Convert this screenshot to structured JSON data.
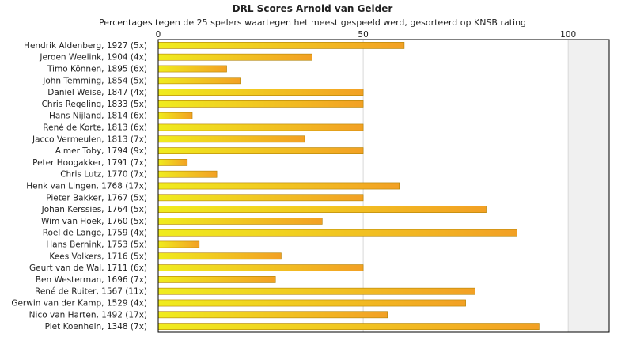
{
  "title": "DRL Scores Arnold van Gelder",
  "subtitle": "Percentages tegen de 25 spelers waartegen het meest gespeeld werd, gesorteerd op KNSB rating",
  "chart_data": {
    "type": "bar",
    "orientation": "horizontal",
    "title": "DRL Scores Arnold van Gelder",
    "subtitle": "Percentages tegen de 25 spelers waartegen het meest gespeeld werd, gesorteerd op KNSB rating",
    "xlim": [
      0,
      110
    ],
    "x_ticks": [
      "0",
      "50",
      "100"
    ],
    "x_tick_values": [
      0,
      50,
      100
    ],
    "categories": [
      "Hendrik Aldenberg, 1927 (5x)",
      "Jeroen Weelink, 1904 (4x)",
      "Timo Können, 1895 (6x)",
      "John Temming, 1854 (5x)",
      "Daniel Weise, 1847 (4x)",
      "Chris Regeling, 1833 (5x)",
      "Hans Nijland, 1814 (6x)",
      "René de Korte, 1813 (6x)",
      "Jacco Vermeulen, 1813 (7x)",
      "Almer Toby, 1794 (9x)",
      "Peter Hoogakker, 1791 (7x)",
      "Chris Lutz, 1770 (7x)",
      "Henk van Lingen, 1768 (17x)",
      "Pieter Bakker, 1767 (5x)",
      "Johan Kerssies, 1764 (5x)",
      "Wim van Hoek, 1760 (5x)",
      "Roel de Lange, 1759 (4x)",
      "Hans Bernink, 1753 (5x)",
      "Kees Volkers, 1716 (5x)",
      "Geurt van de Wal, 1711 (6x)",
      "Ben Westerman, 1696 (7x)",
      "René de Ruiter, 1567 (11x)",
      "Gerwin van der Kamp, 1529 (4x)",
      "Nico van Harten, 1492 (17x)",
      "Piet Koenhein, 1348 (7x)"
    ],
    "values": [
      60,
      37.5,
      16.7,
      20,
      50,
      50,
      8.3,
      50,
      35.7,
      50,
      7.1,
      14.3,
      58.8,
      50,
      80,
      40,
      87.5,
      10,
      30,
      50,
      28.6,
      77.3,
      75,
      55.9,
      92.9
    ],
    "grid": true,
    "colors": {
      "bar_start": "#f0ec1e",
      "bar_end": "#f2a024",
      "bar_border": "#b08000",
      "grid": "#d8d8d8",
      "plot_shade": "#f0f0f0",
      "axis": "#000000"
    }
  }
}
